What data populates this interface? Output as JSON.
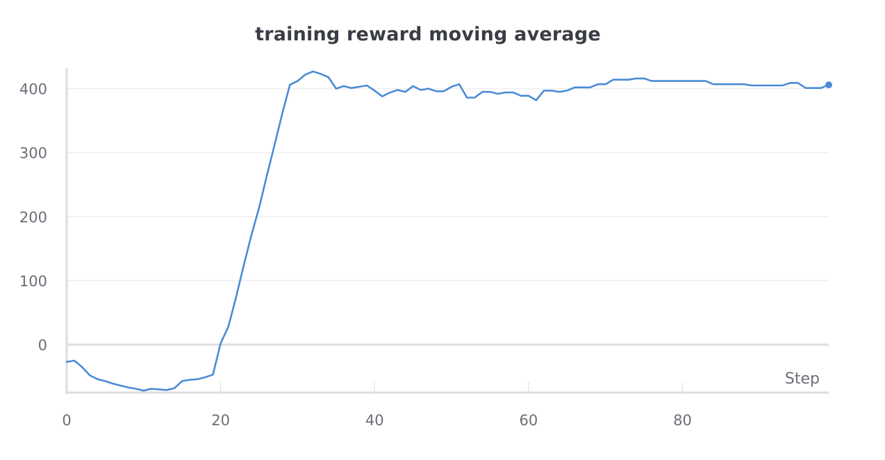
{
  "chart_data": {
    "type": "line",
    "title": "training reward moving average",
    "xlabel": "Step",
    "ylabel": "",
    "xlim": [
      0,
      99
    ],
    "ylim": [
      -75,
      430
    ],
    "x_ticks": [
      0,
      20,
      40,
      60,
      80
    ],
    "y_ticks": [
      0,
      100,
      200,
      300,
      400
    ],
    "grid": true,
    "color": "#4a8bd6",
    "series": [
      {
        "x": [
          0,
          1,
          2,
          3,
          4,
          5,
          6,
          7,
          8,
          9,
          10,
          11,
          12,
          13,
          14,
          15,
          16,
          17,
          18,
          19,
          20,
          21,
          22,
          23,
          24,
          25,
          26,
          27,
          28,
          29,
          30,
          31,
          32,
          33,
          34,
          35,
          36,
          37,
          38,
          39,
          40,
          41,
          42,
          43,
          44,
          45,
          46,
          47,
          48,
          49,
          50,
          51,
          52,
          53,
          54,
          55,
          56,
          57,
          58,
          59,
          60,
          61,
          62,
          63,
          64,
          65,
          66,
          67,
          68,
          69,
          70,
          71,
          72,
          73,
          74,
          75,
          76,
          77,
          78,
          79,
          80,
          81,
          82,
          83,
          84,
          85,
          86,
          87,
          88,
          89,
          90,
          91,
          92,
          93,
          94,
          95,
          96,
          97,
          98,
          99
        ],
        "values": [
          -27,
          -25,
          -35,
          -48,
          -54,
          -57,
          -61,
          -64,
          -67,
          -69,
          -72,
          -69,
          -70,
          -71,
          -68,
          -57,
          -55,
          -54,
          -51,
          -47,
          2,
          28,
          74,
          124,
          171,
          214,
          264,
          312,
          361,
          406,
          412,
          422,
          427,
          423,
          418,
          400,
          404,
          401,
          403,
          405,
          397,
          388,
          394,
          398,
          395,
          404,
          398,
          400,
          396,
          396,
          403,
          407,
          386,
          386,
          395,
          395,
          392,
          394,
          394,
          389,
          389,
          382,
          397,
          397,
          395,
          397,
          402,
          402,
          402,
          407,
          407,
          414,
          414,
          414,
          416,
          416,
          412,
          412,
          412,
          412,
          412,
          412,
          412,
          412,
          407,
          407,
          407,
          407,
          407,
          405,
          405,
          405,
          405,
          405,
          409,
          409,
          401,
          401,
          401,
          406
        ]
      }
    ]
  }
}
